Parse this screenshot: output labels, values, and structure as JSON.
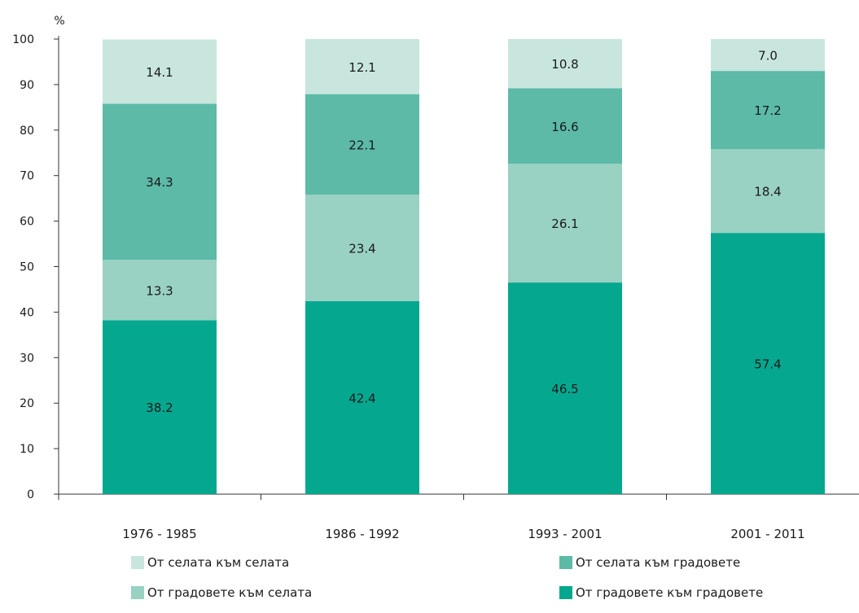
{
  "chart_data": {
    "type": "bar",
    "stacked": true,
    "unit_label": "%",
    "categories": [
      "1976 - 1985",
      "1986 - 1992",
      "1993 - 2001",
      "2001 - 2011"
    ],
    "series": [
      {
        "name": "От градовете към градовете",
        "values": [
          38.2,
          42.4,
          46.5,
          57.4
        ],
        "color": "#05a88f"
      },
      {
        "name": "От градовете към селата",
        "values": [
          13.3,
          23.4,
          26.1,
          18.4
        ],
        "color": "#99d1c3"
      },
      {
        "name": "От селата към градовете",
        "values": [
          34.3,
          22.1,
          16.6,
          17.2
        ],
        "color": "#5cbaa7"
      },
      {
        "name": "От селата към селата",
        "values": [
          14.1,
          12.1,
          10.8,
          7.0
        ],
        "color": "#c8e6de"
      }
    ],
    "ylim": [
      0,
      100
    ],
    "yticks": [
      0,
      10,
      20,
      30,
      40,
      50,
      60,
      70,
      80,
      90,
      100
    ],
    "grid": false,
    "legend_position": "bottom"
  }
}
